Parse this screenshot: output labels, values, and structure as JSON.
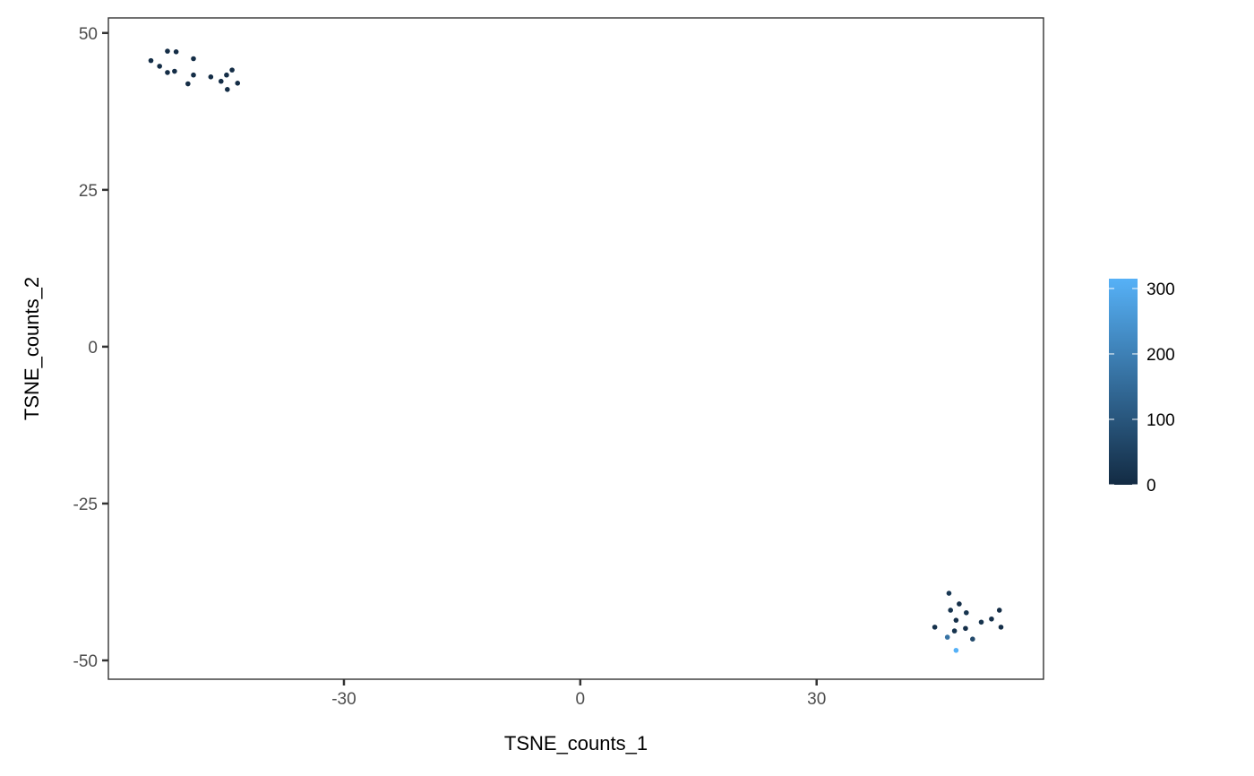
{
  "chart_data": {
    "type": "scatter",
    "title": "",
    "xlabel": "TSNE_counts_1",
    "ylabel": "TSNE_counts_2",
    "xlim": [
      -59.9,
      58.8
    ],
    "ylim": [
      -53.0,
      52.4
    ],
    "xticks": [
      -30,
      0,
      30
    ],
    "yticks": [
      -50,
      -25,
      0,
      25,
      50
    ],
    "grid": false,
    "legend_position": "right",
    "colorbar": {
      "min": 0,
      "max": 315,
      "ticks": [
        0,
        100,
        200,
        300
      ],
      "low_color": "#132B43",
      "high_color": "#56B1F7"
    },
    "points": [
      {
        "x": -54.5,
        "y": 45.6,
        "value": 5
      },
      {
        "x": -53.4,
        "y": 44.7,
        "value": 5
      },
      {
        "x": -52.4,
        "y": 47.1,
        "value": 5
      },
      {
        "x": -51.3,
        "y": 47.0,
        "value": 5
      },
      {
        "x": -52.4,
        "y": 43.7,
        "value": 5
      },
      {
        "x": -51.5,
        "y": 43.9,
        "value": 5
      },
      {
        "x": -49.1,
        "y": 45.9,
        "value": 5
      },
      {
        "x": -49.1,
        "y": 43.3,
        "value": 5
      },
      {
        "x": -49.8,
        "y": 41.9,
        "value": 5
      },
      {
        "x": -46.9,
        "y": 43.0,
        "value": 5
      },
      {
        "x": -45.6,
        "y": 42.3,
        "value": 5
      },
      {
        "x": -44.9,
        "y": 43.3,
        "value": 5
      },
      {
        "x": -44.2,
        "y": 44.1,
        "value": 5
      },
      {
        "x": -44.8,
        "y": 41.0,
        "value": 5
      },
      {
        "x": -43.5,
        "y": 42.0,
        "value": 5
      },
      {
        "x": 46.8,
        "y": -39.3,
        "value": 30
      },
      {
        "x": 48.1,
        "y": -41.0,
        "value": 10
      },
      {
        "x": 47.0,
        "y": -42.0,
        "value": 20
      },
      {
        "x": 49.0,
        "y": -42.4,
        "value": 20
      },
      {
        "x": 47.7,
        "y": -43.6,
        "value": 10
      },
      {
        "x": 53.2,
        "y": -42.0,
        "value": 5
      },
      {
        "x": 52.2,
        "y": -43.4,
        "value": 10
      },
      {
        "x": 50.9,
        "y": -43.9,
        "value": 20
      },
      {
        "x": 53.4,
        "y": -44.7,
        "value": 10
      },
      {
        "x": 45.0,
        "y": -44.7,
        "value": 15
      },
      {
        "x": 47.5,
        "y": -45.3,
        "value": 20
      },
      {
        "x": 48.9,
        "y": -44.9,
        "value": 10
      },
      {
        "x": 46.6,
        "y": -46.3,
        "value": 170
      },
      {
        "x": 49.8,
        "y": -46.6,
        "value": 70
      },
      {
        "x": 47.7,
        "y": -48.4,
        "value": 315
      }
    ]
  }
}
